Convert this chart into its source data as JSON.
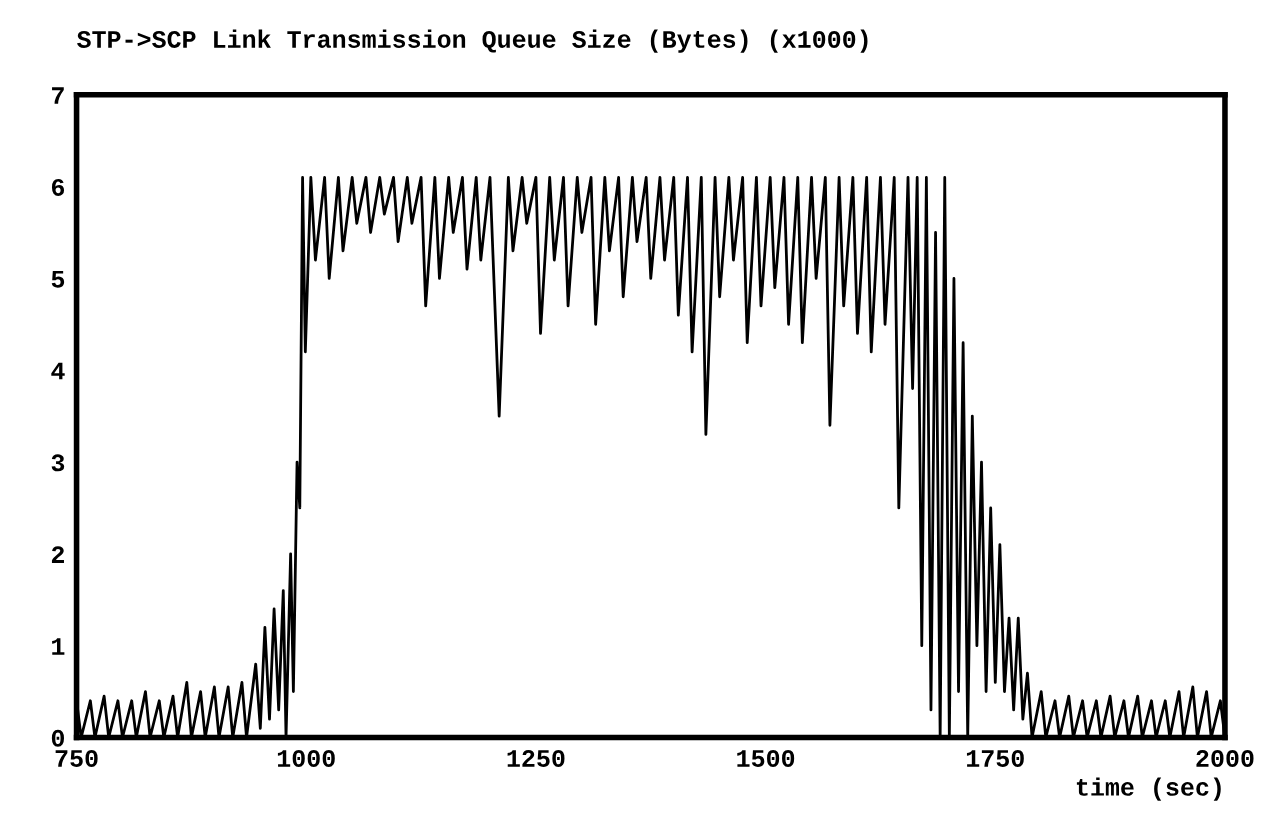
{
  "chart_data": {
    "type": "line",
    "title": "STP->SCP Link Transmission Queue Size (Bytes) (x1000)",
    "xlabel": "time (sec)",
    "xlim": [
      750,
      2000
    ],
    "xticks": [
      750,
      1000,
      1250,
      1500,
      1750,
      2000
    ],
    "ylim": [
      0,
      7
    ],
    "yticks": [
      0,
      1,
      2,
      3,
      4,
      5,
      6,
      7
    ],
    "grid": false,
    "legend": false,
    "marker": "none",
    "line_style": "solid",
    "series": [
      {
        "color": "#000000",
        "x": [
          750,
          755,
          765,
          770,
          780,
          785,
          795,
          800,
          810,
          815,
          825,
          830,
          840,
          845,
          855,
          860,
          870,
          875,
          885,
          890,
          900,
          905,
          915,
          920,
          930,
          935,
          945,
          950,
          955,
          960,
          965,
          970,
          975,
          978,
          983,
          986,
          990,
          993,
          996,
          999,
          1005,
          1010,
          1020,
          1025,
          1035,
          1040,
          1050,
          1055,
          1065,
          1070,
          1080,
          1085,
          1095,
          1100,
          1110,
          1115,
          1125,
          1130,
          1140,
          1145,
          1155,
          1160,
          1170,
          1175,
          1185,
          1190,
          1200,
          1210,
          1220,
          1225,
          1235,
          1240,
          1250,
          1255,
          1265,
          1270,
          1280,
          1285,
          1295,
          1300,
          1310,
          1315,
          1325,
          1330,
          1340,
          1345,
          1355,
          1360,
          1370,
          1375,
          1385,
          1390,
          1400,
          1405,
          1415,
          1420,
          1430,
          1435,
          1445,
          1450,
          1460,
          1465,
          1475,
          1480,
          1490,
          1495,
          1505,
          1510,
          1520,
          1525,
          1535,
          1540,
          1550,
          1555,
          1565,
          1570,
          1580,
          1585,
          1595,
          1600,
          1610,
          1615,
          1625,
          1630,
          1640,
          1645,
          1655,
          1660,
          1665,
          1670,
          1675,
          1680,
          1685,
          1690,
          1695,
          1700,
          1705,
          1710,
          1715,
          1720,
          1725,
          1730,
          1735,
          1740,
          1745,
          1750,
          1755,
          1760,
          1765,
          1770,
          1775,
          1780,
          1785,
          1790,
          1800,
          1805,
          1815,
          1820,
          1830,
          1835,
          1845,
          1850,
          1860,
          1865,
          1875,
          1880,
          1890,
          1895,
          1905,
          1910,
          1920,
          1925,
          1935,
          1940,
          1950,
          1955,
          1965,
          1970,
          1980,
          1985,
          1995,
          2000
        ],
        "values": [
          0.4,
          0,
          0.4,
          0,
          0.45,
          0,
          0.4,
          0,
          0.4,
          0,
          0.5,
          0,
          0.4,
          0,
          0.45,
          0,
          0.6,
          0,
          0.5,
          0,
          0.55,
          0,
          0.55,
          0,
          0.6,
          0,
          0.8,
          0.1,
          1.2,
          0.2,
          1.4,
          0.3,
          1.6,
          0,
          2.0,
          0.5,
          3.0,
          2.5,
          6.1,
          4.2,
          6.1,
          5.2,
          6.1,
          5.0,
          6.1,
          5.3,
          6.1,
          5.6,
          6.1,
          5.5,
          6.1,
          5.7,
          6.1,
          5.4,
          6.1,
          5.6,
          6.1,
          4.7,
          6.1,
          5.0,
          6.1,
          5.5,
          6.1,
          5.1,
          6.1,
          5.2,
          6.1,
          3.5,
          6.1,
          5.3,
          6.1,
          5.6,
          6.1,
          4.4,
          6.1,
          5.2,
          6.1,
          4.7,
          6.1,
          5.5,
          6.1,
          4.5,
          6.1,
          5.3,
          6.1,
          4.8,
          6.1,
          5.4,
          6.1,
          5.0,
          6.1,
          5.2,
          6.1,
          4.6,
          6.1,
          4.2,
          6.1,
          3.3,
          6.1,
          4.8,
          6.1,
          5.2,
          6.1,
          4.3,
          6.1,
          4.7,
          6.1,
          4.9,
          6.1,
          4.5,
          6.1,
          4.3,
          6.1,
          5.0,
          6.1,
          3.4,
          6.1,
          4.7,
          6.1,
          4.4,
          6.1,
          4.2,
          6.1,
          4.5,
          6.1,
          2.5,
          6.1,
          3.8,
          6.1,
          1.0,
          6.1,
          0.3,
          5.5,
          0,
          6.1,
          0,
          5.0,
          0.5,
          4.3,
          0,
          3.5,
          1.0,
          3.0,
          0.5,
          2.5,
          0.6,
          2.1,
          0.5,
          1.3,
          0.3,
          1.3,
          0.2,
          0.7,
          0,
          0.5,
          0,
          0.4,
          0,
          0.45,
          0,
          0.4,
          0,
          0.4,
          0,
          0.45,
          0,
          0.4,
          0,
          0.45,
          0,
          0.4,
          0,
          0.4,
          0,
          0.5,
          0,
          0.55,
          0,
          0.5,
          0,
          0.4,
          0
        ]
      }
    ]
  }
}
